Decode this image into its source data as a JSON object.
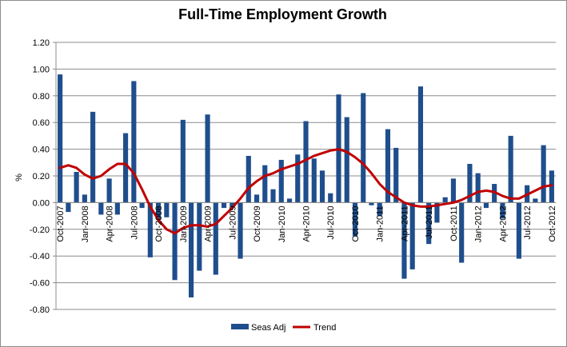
{
  "chart_data": {
    "type": "bar+line",
    "title": "Full-Time Employment Growth",
    "ylabel": "%",
    "xlabel": "",
    "ylim": [
      -0.8,
      1.2
    ],
    "ytick_step": 0.2,
    "ytick_labels": [
      "1.20",
      "1.00",
      "0.80",
      "0.60",
      "0.40",
      "0.20",
      "0.00",
      "-0.20",
      "-0.40",
      "-0.60",
      "-0.80"
    ],
    "grid": "horizontal",
    "legend_position": "bottom-center",
    "tick_labels": [
      "Oct-2007",
      "Jan-2008",
      "Apr-2008",
      "Jul-2008",
      "Oct-2008",
      "Jan-2009",
      "Apr-2009",
      "Jul-2009",
      "Oct-2009",
      "Jan-2010",
      "Apr-2010",
      "Jul-2010",
      "Oct-2010",
      "Jan-2011",
      "Apr-2011",
      "Jul-2011",
      "Oct-2011",
      "Jan-2012",
      "Apr-2012",
      "Jul-2012",
      "Oct-2012"
    ],
    "categories": [
      "Oct-2007",
      "Nov-2007",
      "Dec-2007",
      "Jan-2008",
      "Feb-2008",
      "Mar-2008",
      "Apr-2008",
      "May-2008",
      "Jun-2008",
      "Jul-2008",
      "Aug-2008",
      "Sep-2008",
      "Oct-2008",
      "Nov-2008",
      "Dec-2008",
      "Jan-2009",
      "Feb-2009",
      "Mar-2009",
      "Apr-2009",
      "May-2009",
      "Jun-2009",
      "Jul-2009",
      "Aug-2009",
      "Sep-2009",
      "Oct-2009",
      "Nov-2009",
      "Dec-2009",
      "Jan-2010",
      "Feb-2010",
      "Mar-2010",
      "Apr-2010",
      "May-2010",
      "Jun-2010",
      "Jul-2010",
      "Aug-2010",
      "Sep-2010",
      "Oct-2010",
      "Nov-2010",
      "Dec-2010",
      "Jan-2011",
      "Feb-2011",
      "Mar-2011",
      "Apr-2011",
      "May-2011",
      "Jun-2011",
      "Jul-2011",
      "Aug-2011",
      "Sep-2011",
      "Oct-2011",
      "Nov-2011",
      "Dec-2011",
      "Jan-2012",
      "Feb-2012",
      "Mar-2012",
      "Apr-2012",
      "May-2012",
      "Jun-2012",
      "Jul-2012",
      "Aug-2012",
      "Sep-2012",
      "Oct-2012"
    ],
    "series": [
      {
        "name": "Seas Adj",
        "kind": "bar",
        "color": "#1f4e8c",
        "values": [
          0.96,
          -0.07,
          0.23,
          0.06,
          0.68,
          -0.09,
          0.18,
          -0.09,
          0.52,
          0.91,
          -0.04,
          -0.41,
          -0.13,
          -0.11,
          -0.58,
          0.62,
          -0.71,
          -0.51,
          0.66,
          -0.54,
          -0.04,
          -0.03,
          -0.42,
          0.35,
          0.06,
          0.28,
          0.1,
          0.32,
          0.03,
          0.36,
          0.61,
          0.33,
          0.24,
          0.07,
          0.81,
          0.64,
          -0.25,
          0.82,
          -0.02,
          -0.1,
          0.55,
          0.41,
          -0.57,
          -0.5,
          0.87,
          -0.31,
          -0.15,
          0.04,
          0.18,
          -0.45,
          0.29,
          0.22,
          -0.04,
          0.14,
          -0.12,
          0.5,
          -0.42,
          0.13,
          0.03,
          0.43,
          0.24
        ]
      },
      {
        "name": "Trend",
        "kind": "line",
        "color": "#c00000",
        "values": [
          0.26,
          0.28,
          0.26,
          0.21,
          0.18,
          0.2,
          0.25,
          0.29,
          0.29,
          0.22,
          0.1,
          -0.03,
          -0.13,
          -0.2,
          -0.23,
          -0.19,
          -0.17,
          -0.17,
          -0.18,
          -0.16,
          -0.1,
          -0.04,
          0.03,
          0.11,
          0.16,
          0.2,
          0.22,
          0.25,
          0.27,
          0.29,
          0.32,
          0.35,
          0.37,
          0.39,
          0.4,
          0.38,
          0.34,
          0.29,
          0.22,
          0.14,
          0.08,
          0.04,
          0.0,
          -0.02,
          -0.03,
          -0.03,
          -0.02,
          -0.01,
          0.0,
          0.02,
          0.05,
          0.08,
          0.09,
          0.08,
          0.05,
          0.03,
          0.03,
          0.06,
          0.09,
          0.12,
          0.13
        ]
      }
    ]
  }
}
